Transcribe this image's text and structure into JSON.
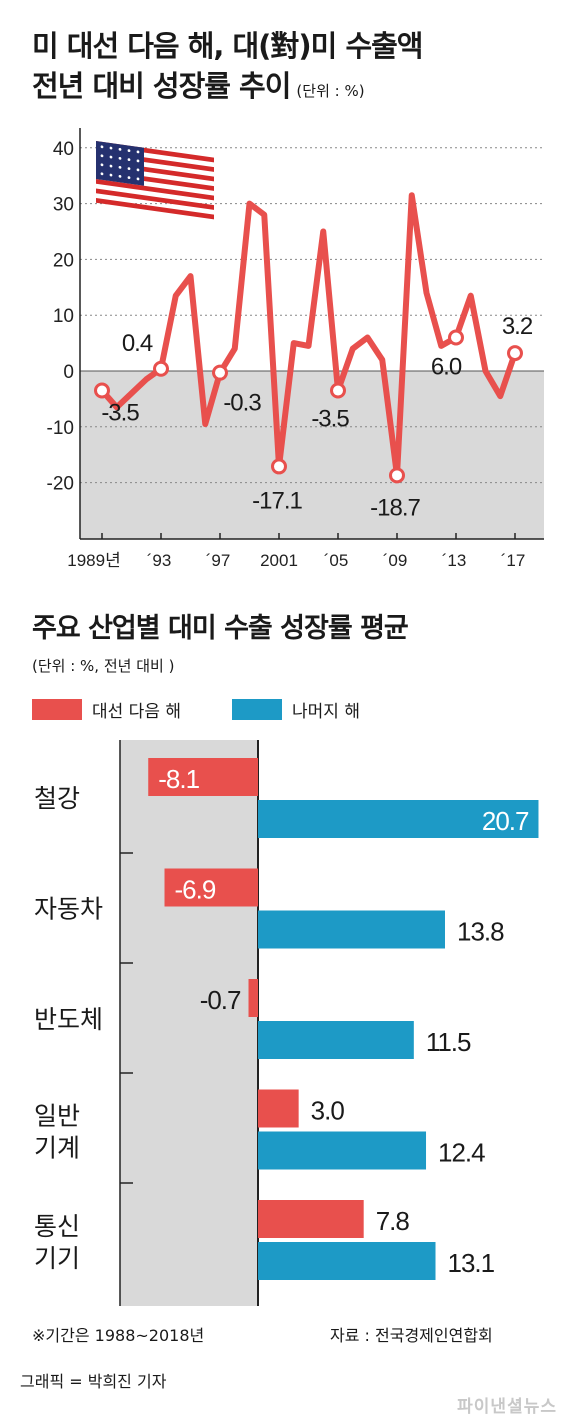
{
  "title_line1": "미 대선 다음 해, 대(對)미 수출액",
  "title_line2": "전년 대비 성장률 추이",
  "title_unit": "(단위 : %)",
  "chart2_title": "주요 산업별 대미 수출 성장률 평균",
  "chart2_subtitle": "(단위 : %, 전년 대비 )",
  "legend": {
    "after_election": "대선 다음 해",
    "other_years": "나머지 해"
  },
  "colors": {
    "red": "#e8504d",
    "blue": "#1d9ac6",
    "shade": "#d9d9d9",
    "grid": "#888888"
  },
  "note": "※기간은 1988~2018년",
  "source": "자료 : 전국경제인연합회",
  "credit": "그래픽 = 박희진 기자",
  "watermark": "파이낸셜뉴스",
  "icons": {
    "flag": "us-flag-icon"
  },
  "chart_data": [
    {
      "type": "line",
      "x": [
        1989,
        1990,
        1991,
        1992,
        1993,
        1994,
        1995,
        1996,
        1997,
        1998,
        1999,
        2000,
        2001,
        2002,
        2003,
        2004,
        2005,
        2006,
        2007,
        2008,
        2009,
        2010,
        2011,
        2012,
        2013,
        2014,
        2015,
        2016,
        2017
      ],
      "x_tick_values": [
        1989,
        1993,
        1997,
        2001,
        2005,
        2009,
        2013,
        2017
      ],
      "x_tick_labels": [
        "1989년",
        "´93",
        "´97",
        "2001",
        "´05",
        "´09",
        "´13",
        "´17"
      ],
      "series": [
        {
          "values": [
            -3.5,
            -6.5,
            -4,
            -1.5,
            0.4,
            13.5,
            17,
            -9.5,
            -0.3,
            4,
            30,
            28,
            -17.1,
            5,
            4.5,
            25,
            -3.5,
            4,
            6,
            2,
            -18.7,
            31.5,
            14,
            4.5,
            6.0,
            13.5,
            0,
            -4.5,
            3.2
          ]
        }
      ],
      "highlighted": [
        {
          "x": 1989,
          "value": -3.5,
          "label": "-3.5"
        },
        {
          "x": 1993,
          "value": 0.4,
          "label": "0.4"
        },
        {
          "x": 1997,
          "value": -0.3,
          "label": "-0.3"
        },
        {
          "x": 2001,
          "value": -17.1,
          "label": "-17.1"
        },
        {
          "x": 2005,
          "value": -3.5,
          "label": "-3.5"
        },
        {
          "x": 2009,
          "value": -18.7,
          "label": "-18.7"
        },
        {
          "x": 2013,
          "value": 6.0,
          "label": "6.0"
        },
        {
          "x": 2017,
          "value": 3.2,
          "label": "3.2"
        }
      ],
      "y_ticks": [
        40,
        30,
        20,
        10,
        0,
        -10,
        -20
      ],
      "ylim": [
        -30,
        40
      ],
      "grid": true
    },
    {
      "type": "bar",
      "orientation": "horizontal",
      "categories": [
        [
          "철강"
        ],
        [
          "자동차"
        ],
        [
          "반도체"
        ],
        [
          "일반",
          "기계"
        ],
        [
          "통신",
          "기기"
        ]
      ],
      "series": [
        {
          "name": "대선 다음 해",
          "values": [
            -8.1,
            -6.9,
            -0.7,
            3.0,
            7.8
          ],
          "labels": [
            "-8.1",
            "-6.9",
            "-0.7",
            "3.0",
            "7.8"
          ]
        },
        {
          "name": "나머지 해",
          "values": [
            20.7,
            13.8,
            11.5,
            12.4,
            13.1
          ],
          "labels": [
            "20.7",
            "13.8",
            "11.5",
            "12.4",
            "13.1"
          ]
        }
      ]
    }
  ]
}
